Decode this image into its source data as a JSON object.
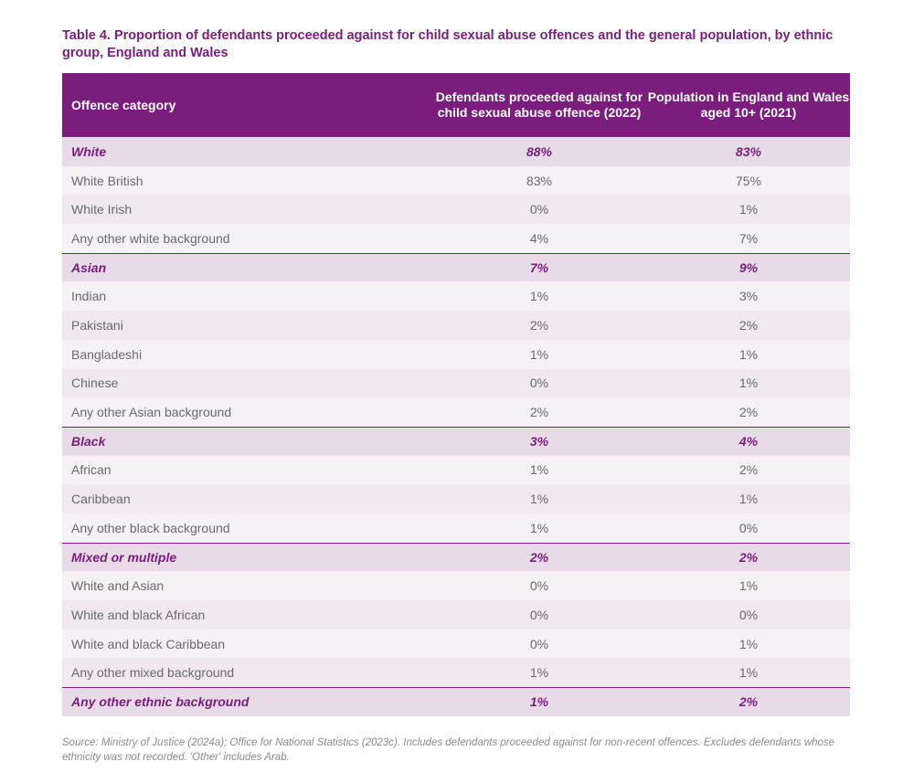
{
  "title": "Table 4. Proportion of defendants proceeded against for child sexual abuse offences and the general population, by ethnic group, England and Wales",
  "table": {
    "headers": {
      "category": "Offence category",
      "defendants": "Defendants proceeded against for child sexual abuse offence (2022)",
      "population": "Population in England and Wales aged 10+ (2021)"
    },
    "rows": [
      {
        "label": "White",
        "defendants": "88%",
        "population": "83%",
        "kind": "group"
      },
      {
        "label": "White British",
        "defendants": "83%",
        "population": "75%",
        "kind": "sub"
      },
      {
        "label": "White Irish",
        "defendants": "0%",
        "population": "1%",
        "kind": "sub"
      },
      {
        "label": "Any other white background",
        "defendants": "4%",
        "population": "7%",
        "kind": "sub"
      },
      {
        "label": "Asian",
        "defendants": "7%",
        "population": "9%",
        "kind": "group"
      },
      {
        "label": "Indian",
        "defendants": "1%",
        "population": "3%",
        "kind": "sub"
      },
      {
        "label": "Pakistani",
        "defendants": "2%",
        "population": "2%",
        "kind": "sub"
      },
      {
        "label": "Bangladeshi",
        "defendants": "1%",
        "population": "1%",
        "kind": "sub"
      },
      {
        "label": "Chinese",
        "defendants": "0%",
        "population": "1%",
        "kind": "sub"
      },
      {
        "label": "Any other Asian background",
        "defendants": "2%",
        "population": "2%",
        "kind": "sub"
      },
      {
        "label": "Black",
        "defendants": "3%",
        "population": "4%",
        "kind": "group"
      },
      {
        "label": "African",
        "defendants": "1%",
        "population": "2%",
        "kind": "sub"
      },
      {
        "label": "Caribbean",
        "defendants": "1%",
        "population": "1%",
        "kind": "sub"
      },
      {
        "label": "Any other black background",
        "defendants": "1%",
        "population": "0%",
        "kind": "sub"
      },
      {
        "label": "Mixed or multiple",
        "defendants": "2%",
        "population": "2%",
        "kind": "group"
      },
      {
        "label": "White and Asian",
        "defendants": "0%",
        "population": "1%",
        "kind": "sub"
      },
      {
        "label": "White and black African",
        "defendants": "0%",
        "population": "0%",
        "kind": "sub"
      },
      {
        "label": "White and black Caribbean",
        "defendants": "0%",
        "population": "1%",
        "kind": "sub"
      },
      {
        "label": "Any other mixed background",
        "defendants": "1%",
        "population": "1%",
        "kind": "sub"
      },
      {
        "label": "Any other ethnic background",
        "defendants": "1%",
        "population": "2%",
        "kind": "group"
      }
    ]
  },
  "source": "Source: Ministry of Justice (2024a); Office for National Statistics (2023c). Includes defendants proceeded against for non-recent offences. Excludes defendants whose ethnicity was not recorded. 'Other' includes Arab.",
  "colors": {
    "header_bg": "#7a1d7c",
    "title_text": "#7b1d7e",
    "group_bg": "#e6dbe6",
    "sub_bg": "#f5f1f5"
  }
}
